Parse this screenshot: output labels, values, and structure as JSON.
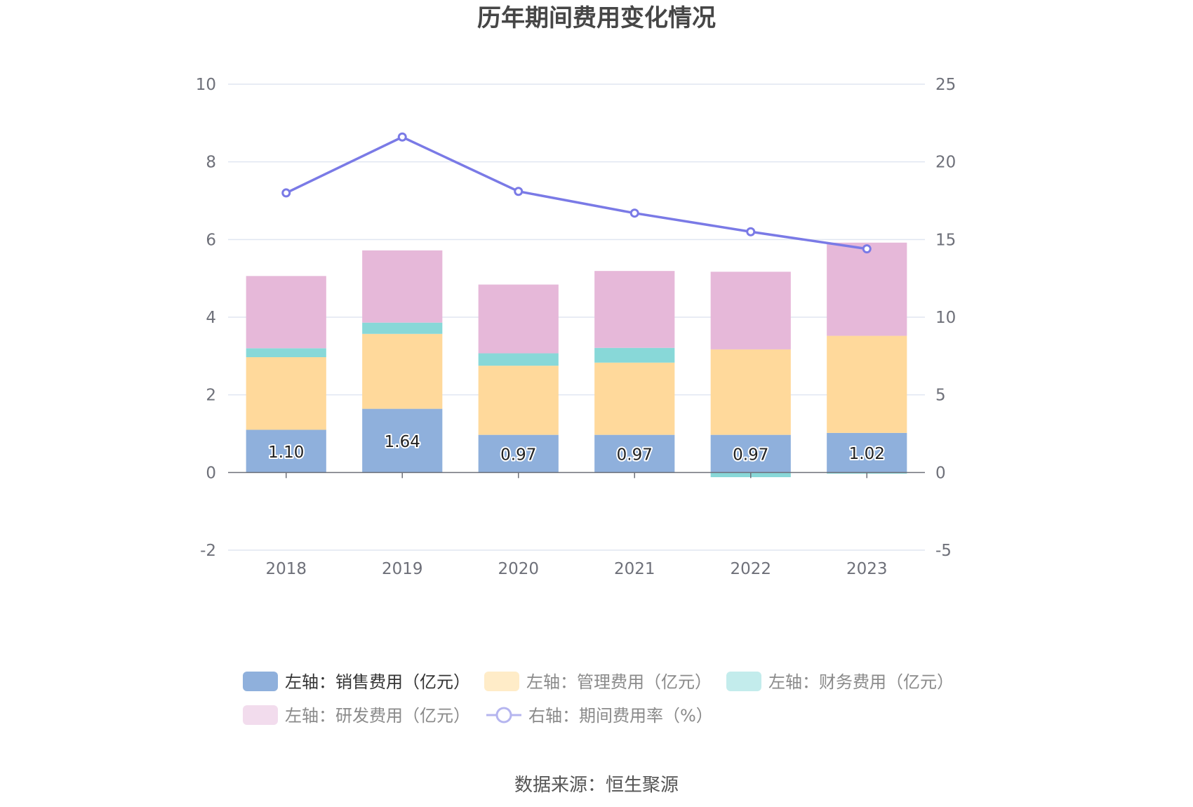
{
  "title": "历年期间费用变化情况",
  "source": "数据来源：恒生聚源",
  "chart_data": {
    "type": "bar",
    "stacked": true,
    "categories": [
      "2018",
      "2019",
      "2020",
      "2021",
      "2022",
      "2023"
    ],
    "y_left": {
      "ticks": [
        "10",
        "8",
        "6",
        "4",
        "2",
        "0",
        "-2"
      ],
      "min": -2,
      "max": 10
    },
    "y_right": {
      "ticks": [
        "25",
        "20",
        "15",
        "10",
        "5",
        "0",
        "-5"
      ],
      "min": -5,
      "max": 25
    },
    "grid": true,
    "legend_position": "bottom",
    "series": [
      {
        "name": "左轴：销售费用（亿元）",
        "type": "bar",
        "axis": "left",
        "color": "#8fb0dc",
        "values": [
          1.1,
          1.64,
          0.97,
          0.97,
          0.97,
          1.02
        ],
        "labels": [
          "1.10",
          "1.64",
          "0.97",
          "0.97",
          "0.97",
          "1.02"
        ]
      },
      {
        "name": "左轴：管理费用（亿元）",
        "type": "bar",
        "axis": "left",
        "color": "#ffd99b",
        "values": [
          1.87,
          1.93,
          1.78,
          1.86,
          2.2,
          2.5
        ]
      },
      {
        "name": "左轴：财务费用（亿元）",
        "type": "bar",
        "axis": "left",
        "color": "#88d8d8",
        "values": [
          0.23,
          0.29,
          0.32,
          0.38,
          -0.12,
          -0.03
        ]
      },
      {
        "name": "左轴：研发费用（亿元）",
        "type": "bar",
        "axis": "left",
        "color": "#e6b8d9",
        "values": [
          1.86,
          1.86,
          1.77,
          1.98,
          2.0,
          2.4
        ]
      },
      {
        "name": "右轴：期间费用率（%）",
        "type": "line",
        "axis": "right",
        "color": "#7a7ae6",
        "values": [
          18.0,
          21.6,
          18.1,
          16.7,
          15.5,
          14.4
        ]
      }
    ]
  }
}
